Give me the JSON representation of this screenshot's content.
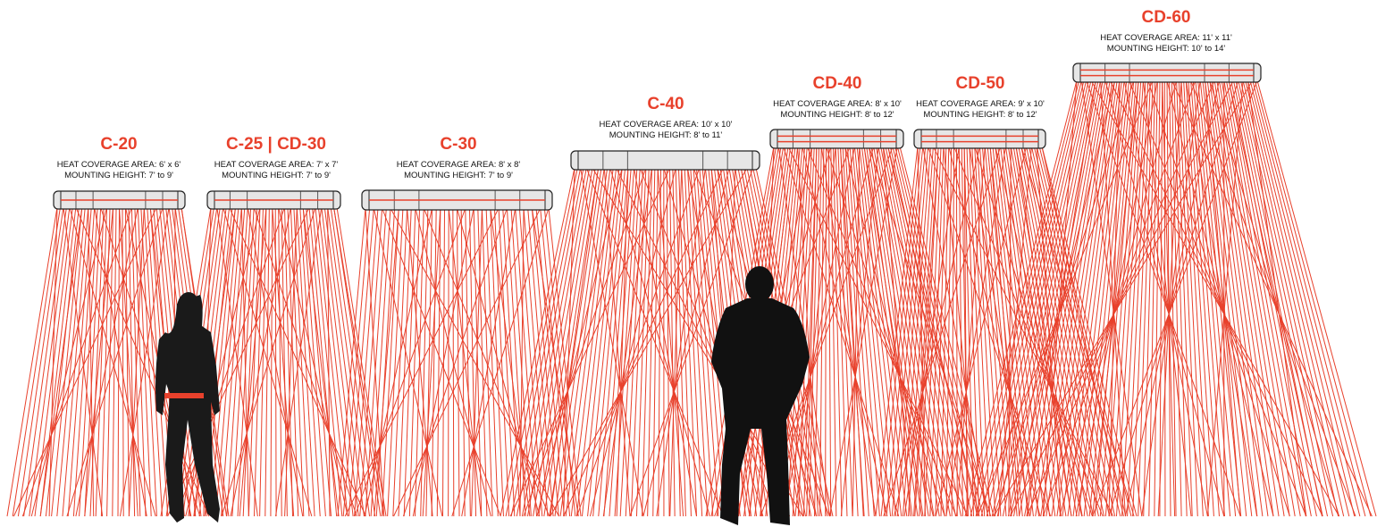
{
  "heaters": [
    {
      "name": "C-20",
      "coverage": "HEAT COVERAGE AREA: 6' x 6'",
      "mounting": "MOUNTING HEIGHT: 7' to 9'"
    },
    {
      "name": "C-25 | CD-30",
      "coverage": "HEAT COVERAGE AREA: 7' x 7'",
      "mounting": "MOUNTING HEIGHT: 7' to 9'"
    },
    {
      "name": "C-30",
      "coverage": "HEAT COVERAGE AREA: 8' x 8'",
      "mounting": "MOUNTING HEIGHT: 7' to 9'"
    },
    {
      "name": "C-40",
      "coverage": "HEAT COVERAGE AREA: 10' x 10'",
      "mounting": "MOUNTING HEIGHT: 8' to 11'"
    },
    {
      "name": "CD-40",
      "coverage": "HEAT COVERAGE AREA: 8' x 10'",
      "mounting": "MOUNTING HEIGHT: 8' to 12'"
    },
    {
      "name": "CD-50",
      "coverage": "HEAT COVERAGE AREA: 9' x 10'",
      "mounting": "MOUNTING HEIGHT: 8' to 12'"
    },
    {
      "name": "CD-60",
      "coverage": "HEAT COVERAGE AREA: 11' x 11'",
      "mounting": "MOUNTING HEIGHT: 10' to 14'"
    }
  ]
}
